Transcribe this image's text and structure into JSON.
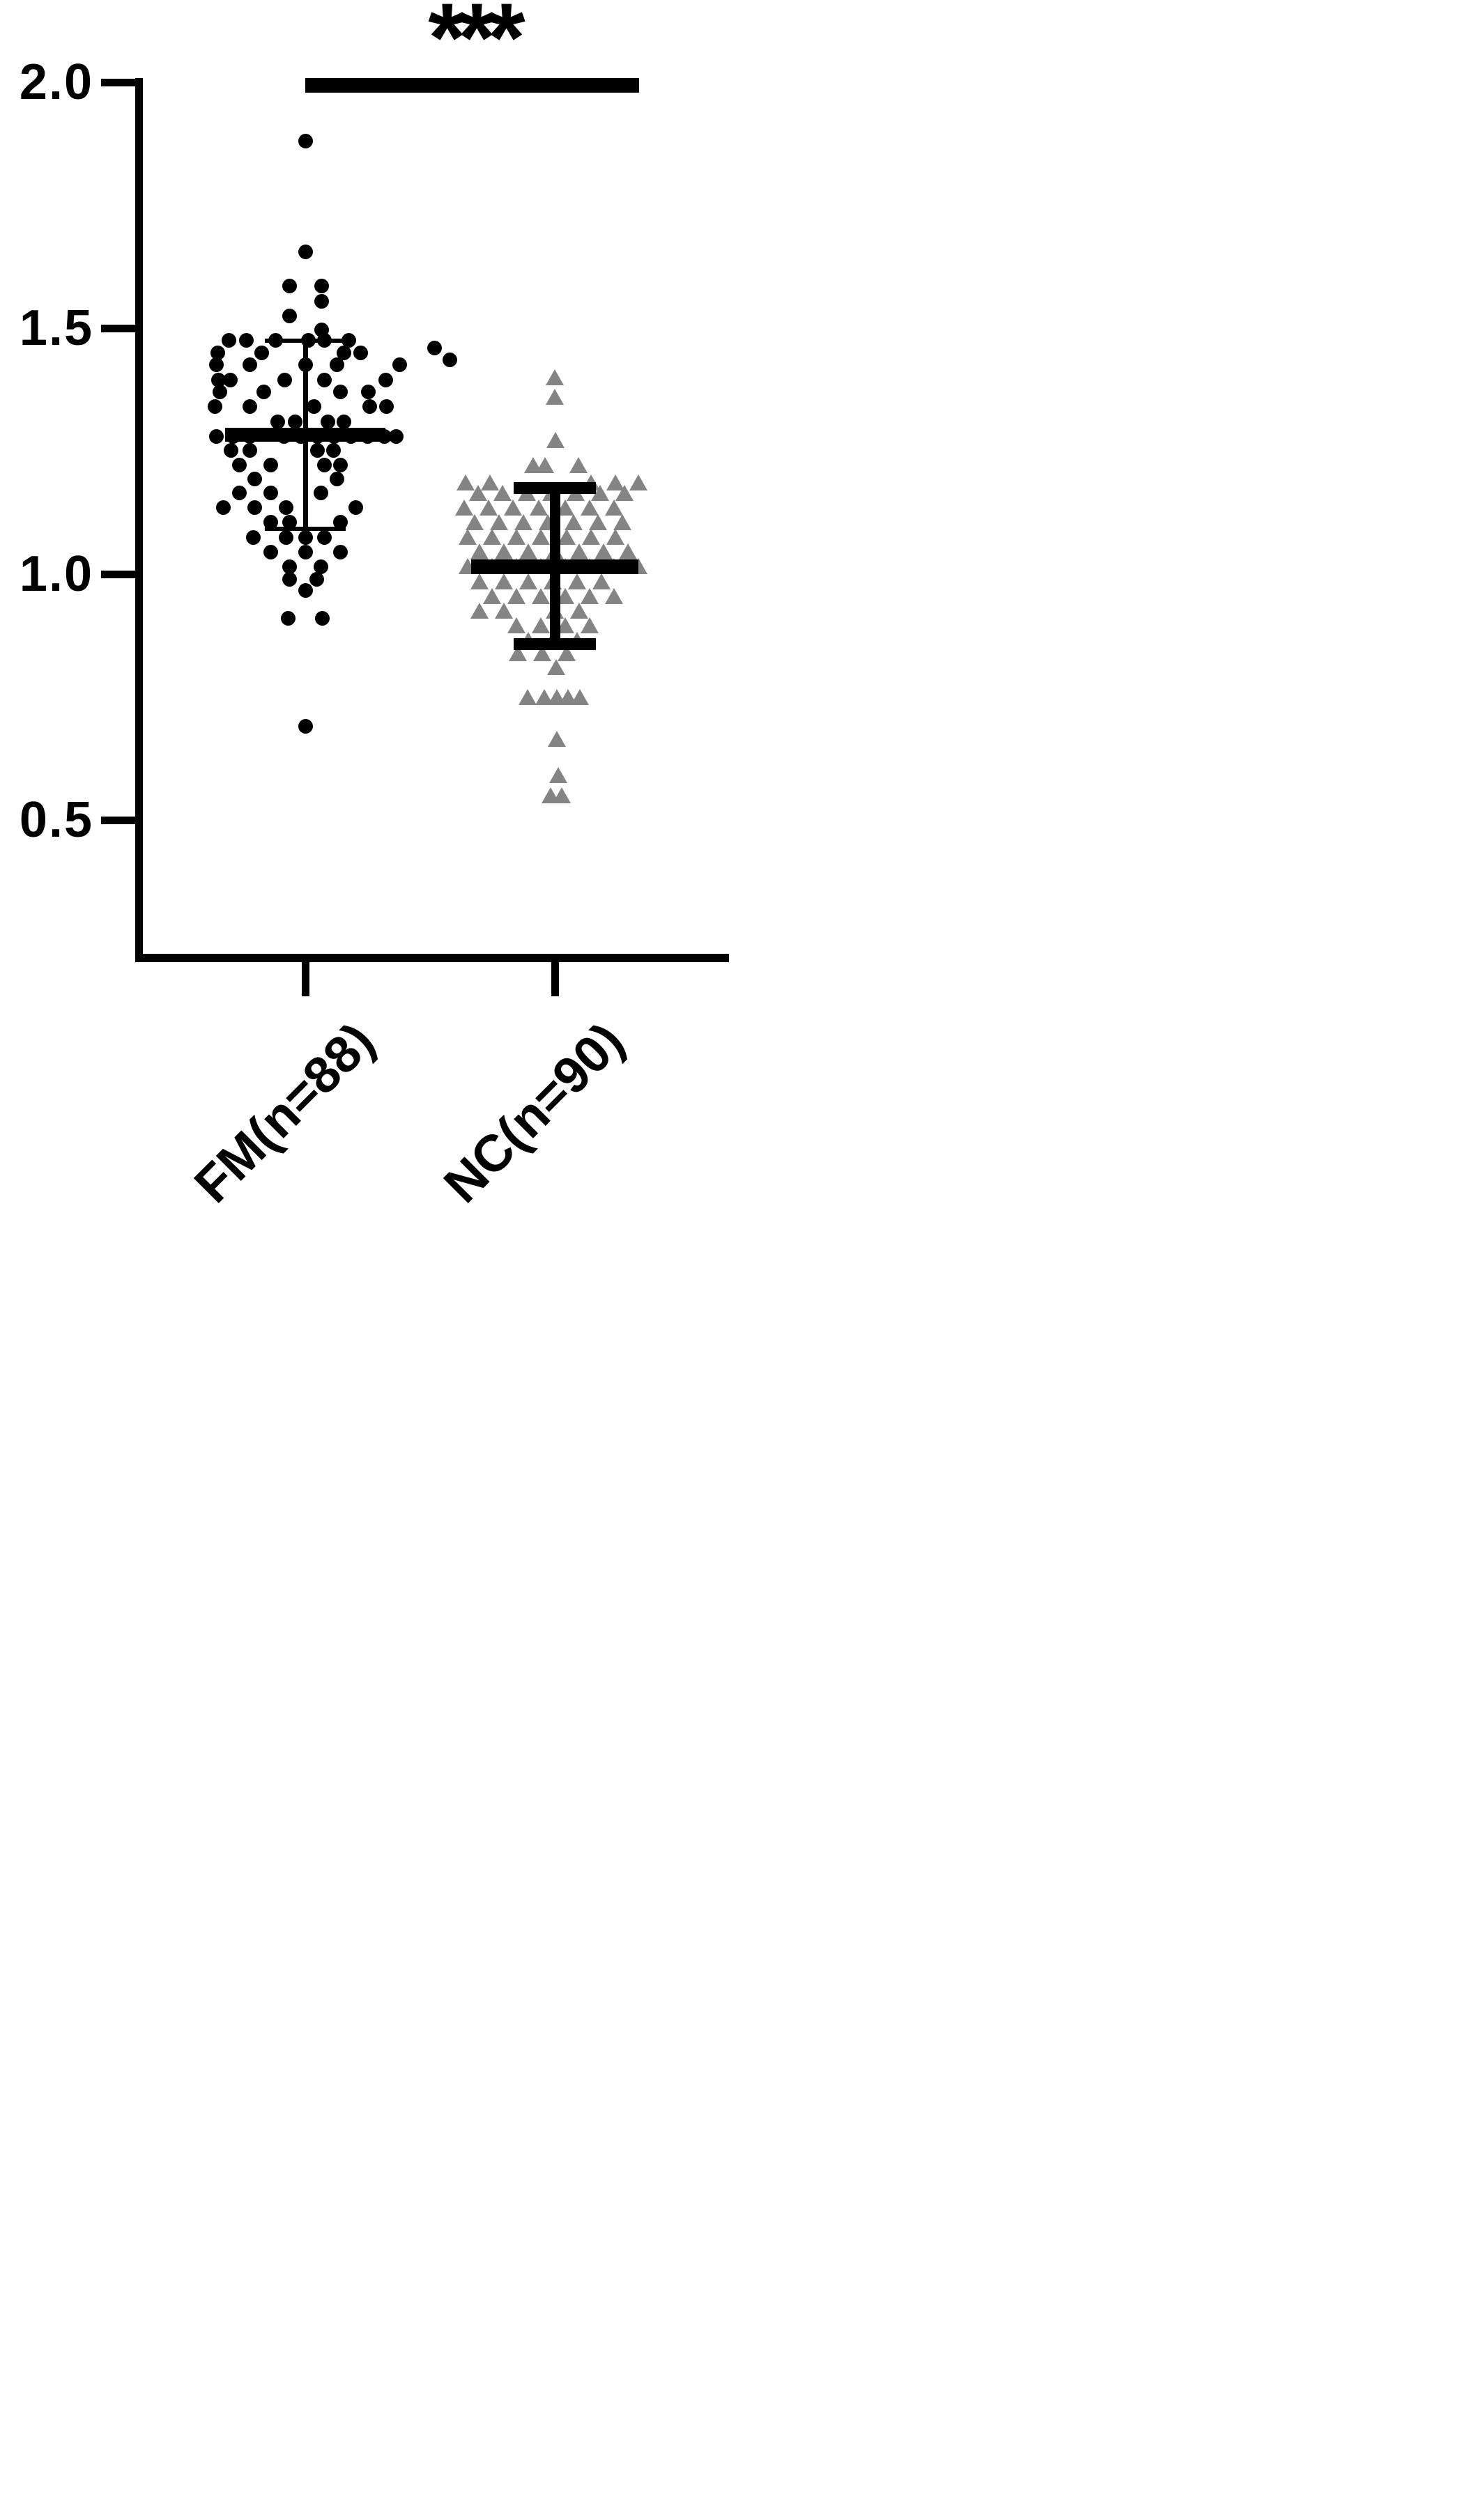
{
  "figure": {
    "significance_label": "***"
  },
  "y_axis": {
    "ticks": [
      "2.0",
      "1.5",
      "1.0",
      "0.5"
    ],
    "tick_values": [
      2.0,
      1.5,
      1.0,
      0.5
    ]
  },
  "chart_data": {
    "type": "scatter",
    "subtype": "column-scatter-beeswarm-with-mean-sd",
    "title": "",
    "xlabel": "",
    "ylabel": "",
    "ylim": [
      0.23,
      2.0
    ],
    "yticks": [
      0.5,
      1.0,
      1.5,
      2.0
    ],
    "grid": false,
    "significance": {
      "label": "***",
      "between": [
        "FM(n=88)",
        "NC(n=90)"
      ]
    },
    "groups": [
      {
        "label": "FM(n=88)",
        "n": 88,
        "marker": "circle",
        "color": "#000000",
        "mean": 1.283,
        "sd_upper": 1.474,
        "sd_lower": 1.092,
        "points": [
          [
            1.88,
            0
          ],
          [
            1.655,
            0
          ],
          [
            1.585,
            -45
          ],
          [
            1.585,
            46
          ],
          [
            1.555,
            46
          ],
          [
            1.525,
            -45
          ],
          [
            1.497,
            46
          ],
          [
            1.475,
            -220
          ],
          [
            1.475,
            -170
          ],
          [
            1.475,
            -86
          ],
          [
            1.475,
            8
          ],
          [
            1.475,
            55
          ],
          [
            1.475,
            124
          ],
          [
            1.46,
            370
          ],
          [
            1.45,
            -252
          ],
          [
            1.45,
            -126
          ],
          [
            1.45,
            110
          ],
          [
            1.45,
            158
          ],
          [
            1.435,
            415
          ],
          [
            1.425,
            -255
          ],
          [
            1.425,
            -160
          ],
          [
            1.425,
            0
          ],
          [
            1.425,
            90
          ],
          [
            1.425,
            270
          ],
          [
            1.395,
            -250
          ],
          [
            1.395,
            -216
          ],
          [
            1.395,
            -60
          ],
          [
            1.395,
            55
          ],
          [
            1.395,
            230
          ],
          [
            1.37,
            -245
          ],
          [
            1.37,
            -120
          ],
          [
            1.37,
            100
          ],
          [
            1.37,
            180
          ],
          [
            1.34,
            -260
          ],
          [
            1.34,
            -160
          ],
          [
            1.34,
            25
          ],
          [
            1.34,
            185
          ],
          [
            1.34,
            232
          ],
          [
            1.31,
            -80
          ],
          [
            1.31,
            -30
          ],
          [
            1.31,
            65
          ],
          [
            1.31,
            110
          ],
          [
            1.28,
            -256
          ],
          [
            1.28,
            -208
          ],
          [
            1.28,
            -160
          ],
          [
            1.28,
            -62
          ],
          [
            1.28,
            -14
          ],
          [
            1.28,
            34
          ],
          [
            1.28,
            82
          ],
          [
            1.28,
            130
          ],
          [
            1.28,
            178
          ],
          [
            1.28,
            226
          ],
          [
            1.28,
            260
          ],
          [
            1.252,
            -214
          ],
          [
            1.252,
            -160
          ],
          [
            1.252,
            35
          ],
          [
            1.252,
            80
          ],
          [
            1.222,
            -190
          ],
          [
            1.222,
            -100
          ],
          [
            1.222,
            55
          ],
          [
            1.222,
            100
          ],
          [
            1.193,
            -145
          ],
          [
            1.193,
            90
          ],
          [
            1.165,
            -190
          ],
          [
            1.165,
            -100
          ],
          [
            1.165,
            45
          ],
          [
            1.135,
            -235
          ],
          [
            1.135,
            -145
          ],
          [
            1.135,
            -55
          ],
          [
            1.135,
            145
          ],
          [
            1.105,
            -100
          ],
          [
            1.105,
            -45
          ],
          [
            1.105,
            100
          ],
          [
            1.075,
            -150
          ],
          [
            1.075,
            -55
          ],
          [
            1.075,
            0
          ],
          [
            1.075,
            55
          ],
          [
            1.045,
            -100
          ],
          [
            1.045,
            0
          ],
          [
            1.045,
            100
          ],
          [
            1.015,
            -45
          ],
          [
            1.015,
            45
          ],
          [
            0.99,
            -45
          ],
          [
            0.99,
            32
          ],
          [
            0.967,
            0
          ],
          [
            0.91,
            -50
          ],
          [
            0.91,
            48
          ],
          [
            0.69,
            0
          ]
        ]
      },
      {
        "label": "NC(n=90)",
        "n": 90,
        "marker": "triangle",
        "color": "#848484",
        "mean": 1.015,
        "sd_upper": 1.175,
        "sd_lower": 0.858,
        "points": [
          [
            1.4,
            0
          ],
          [
            1.36,
            0
          ],
          [
            1.272,
            2
          ],
          [
            1.221,
            -62
          ],
          [
            1.221,
            -28
          ],
          [
            1.221,
            68
          ],
          [
            1.185,
            -255
          ],
          [
            1.185,
            -185
          ],
          [
            1.185,
            105
          ],
          [
            1.185,
            175
          ],
          [
            1.185,
            240
          ],
          [
            1.165,
            -220
          ],
          [
            1.165,
            -150
          ],
          [
            1.165,
            -80
          ],
          [
            1.165,
            -10
          ],
          [
            1.165,
            60
          ],
          [
            1.165,
            130
          ],
          [
            1.165,
            200
          ],
          [
            1.135,
            -260
          ],
          [
            1.135,
            -190
          ],
          [
            1.135,
            -120
          ],
          [
            1.135,
            -45
          ],
          [
            1.135,
            30
          ],
          [
            1.135,
            100
          ],
          [
            1.135,
            170
          ],
          [
            1.105,
            -230
          ],
          [
            1.105,
            -160
          ],
          [
            1.105,
            -90
          ],
          [
            1.105,
            -20
          ],
          [
            1.105,
            55
          ],
          [
            1.105,
            125
          ],
          [
            1.105,
            195
          ],
          [
            1.075,
            -250
          ],
          [
            1.075,
            -180
          ],
          [
            1.075,
            -110
          ],
          [
            1.075,
            -40
          ],
          [
            1.075,
            35
          ],
          [
            1.075,
            105
          ],
          [
            1.075,
            175
          ],
          [
            1.045,
            -215
          ],
          [
            1.045,
            -145
          ],
          [
            1.045,
            -75
          ],
          [
            1.045,
            0
          ],
          [
            1.045,
            70
          ],
          [
            1.045,
            140
          ],
          [
            1.045,
            210
          ],
          [
            1.015,
            -250
          ],
          [
            1.015,
            -180
          ],
          [
            1.015,
            -110
          ],
          [
            1.015,
            -40
          ],
          [
            1.015,
            30
          ],
          [
            1.015,
            100
          ],
          [
            1.015,
            170
          ],
          [
            1.015,
            240
          ],
          [
            0.985,
            -215
          ],
          [
            0.985,
            -145
          ],
          [
            0.985,
            -75
          ],
          [
            0.985,
            -5
          ],
          [
            0.985,
            65
          ],
          [
            0.985,
            135
          ],
          [
            0.955,
            -180
          ],
          [
            0.955,
            -110
          ],
          [
            0.955,
            -40
          ],
          [
            0.955,
            30
          ],
          [
            0.955,
            100
          ],
          [
            0.955,
            170
          ],
          [
            0.925,
            -215
          ],
          [
            0.925,
            -145
          ],
          [
            0.925,
            0
          ],
          [
            0.925,
            70
          ],
          [
            0.895,
            -110
          ],
          [
            0.895,
            -40
          ],
          [
            0.895,
            30
          ],
          [
            0.895,
            100
          ],
          [
            0.865,
            -75
          ],
          [
            0.865,
            -5
          ],
          [
            0.865,
            65
          ],
          [
            0.838,
            -105
          ],
          [
            0.838,
            -35
          ],
          [
            0.838,
            35
          ],
          [
            0.81,
            5
          ],
          [
            0.75,
            -77
          ],
          [
            0.75,
            -30
          ],
          [
            0.75,
            6
          ],
          [
            0.75,
            39
          ],
          [
            0.75,
            72
          ],
          [
            0.665,
            6
          ],
          [
            0.59,
            10
          ],
          [
            0.55,
            -12
          ],
          [
            0.55,
            21
          ]
        ]
      }
    ]
  }
}
